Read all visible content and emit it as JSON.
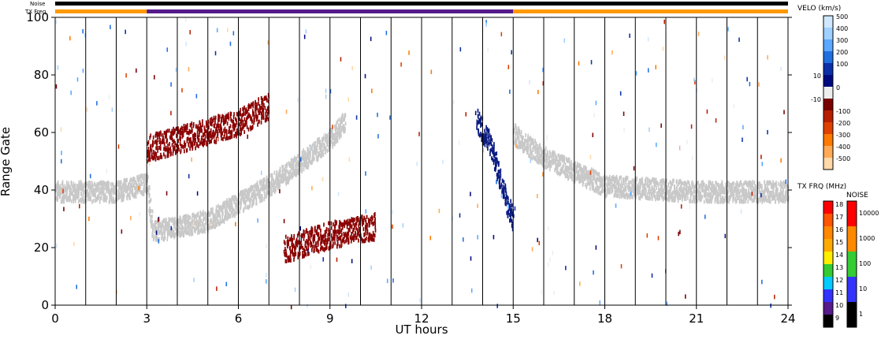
{
  "chart_data": {
    "type": "heatmap",
    "xlabel": "UT hours",
    "ylabel": "Range Gate",
    "xlim": [
      0,
      24
    ],
    "ylim": [
      0,
      100
    ],
    "xticks": [
      "0",
      "3",
      "6",
      "9",
      "12",
      "15",
      "18",
      "21",
      "24"
    ],
    "yticks": [
      "0",
      "20",
      "40",
      "60",
      "80",
      "100"
    ],
    "grid": "vertical lines every 1 UT hour",
    "top_bars": {
      "noise_label": "Noise",
      "txfreq_label": "TX Freq",
      "txfreq_segments": [
        {
          "start": 0,
          "end": 3,
          "color": "#ff9900"
        },
        {
          "start": 3,
          "end": 15,
          "color": "#551a8b"
        },
        {
          "start": 15,
          "end": 24,
          "color": "#ff9900"
        }
      ]
    },
    "velocity_colorbar": {
      "title": "VELO (km/s)",
      "ticks": [
        "500",
        "400",
        "300",
        "200",
        "100",
        "10",
        "0",
        "-10",
        "-100",
        "-200",
        "-300",
        "-400",
        "-500"
      ],
      "colors": [
        "#cfe8ff",
        "#9fd0ff",
        "#5aa8ff",
        "#1f6fe0",
        "#0a2fa8",
        "#000a80",
        "#eeeeee",
        "#7a0000",
        "#b81e00",
        "#e04000",
        "#ff7a00",
        "#ffaa55",
        "#ffd9a8"
      ]
    },
    "txfreq_colorbar": {
      "title": "TX FRQ (MHz)",
      "ticks": [
        "18",
        "17",
        "16",
        "15",
        "14",
        "13",
        "12",
        "11",
        "10",
        "9"
      ],
      "colors": [
        "#ff0000",
        "#ff5500",
        "#ff8800",
        "#ffaa00",
        "#ffee00",
        "#33cc33",
        "#00ccff",
        "#3333ff",
        "#551a8b",
        "#000000"
      ]
    },
    "noise_colorbar": {
      "title": "NOISE",
      "ticks": [
        "10000",
        "1000",
        "100",
        "10",
        "1"
      ],
      "colors": [
        "#ff0000",
        "#ff8800",
        "#33cc33",
        "#3333ff",
        "#000000"
      ]
    },
    "ground_scatter_color": "#c8c8c8",
    "features": [
      {
        "name": "ground scatter band",
        "color": "#c8c8c8",
        "points": [
          [
            0,
            40
          ],
          [
            2,
            40
          ],
          [
            3,
            43
          ],
          [
            3.2,
            26
          ],
          [
            5,
            30
          ],
          [
            7,
            42
          ],
          [
            9,
            58
          ],
          [
            9.5,
            65
          ]
        ]
      },
      {
        "name": "negative velocity patch",
        "color": "#8b0000",
        "points": [
          [
            3,
            55
          ],
          [
            6,
            64
          ],
          [
            7,
            70
          ]
        ]
      },
      {
        "name": "negative velocity patch",
        "color": "#8b0000",
        "points": [
          [
            7.5,
            20
          ],
          [
            9,
            25
          ],
          [
            10.5,
            28
          ]
        ]
      },
      {
        "name": "positive velocity trace",
        "color": "#0a1a80",
        "points": [
          [
            13.8,
            65
          ],
          [
            14.3,
            55
          ],
          [
            14.8,
            35
          ],
          [
            15,
            30
          ]
        ]
      },
      {
        "name": "ground scatter band",
        "color": "#c8c8c8",
        "points": [
          [
            15,
            60
          ],
          [
            16,
            52
          ],
          [
            18,
            42
          ],
          [
            21,
            40
          ],
          [
            24,
            40
          ]
        ]
      }
    ]
  }
}
